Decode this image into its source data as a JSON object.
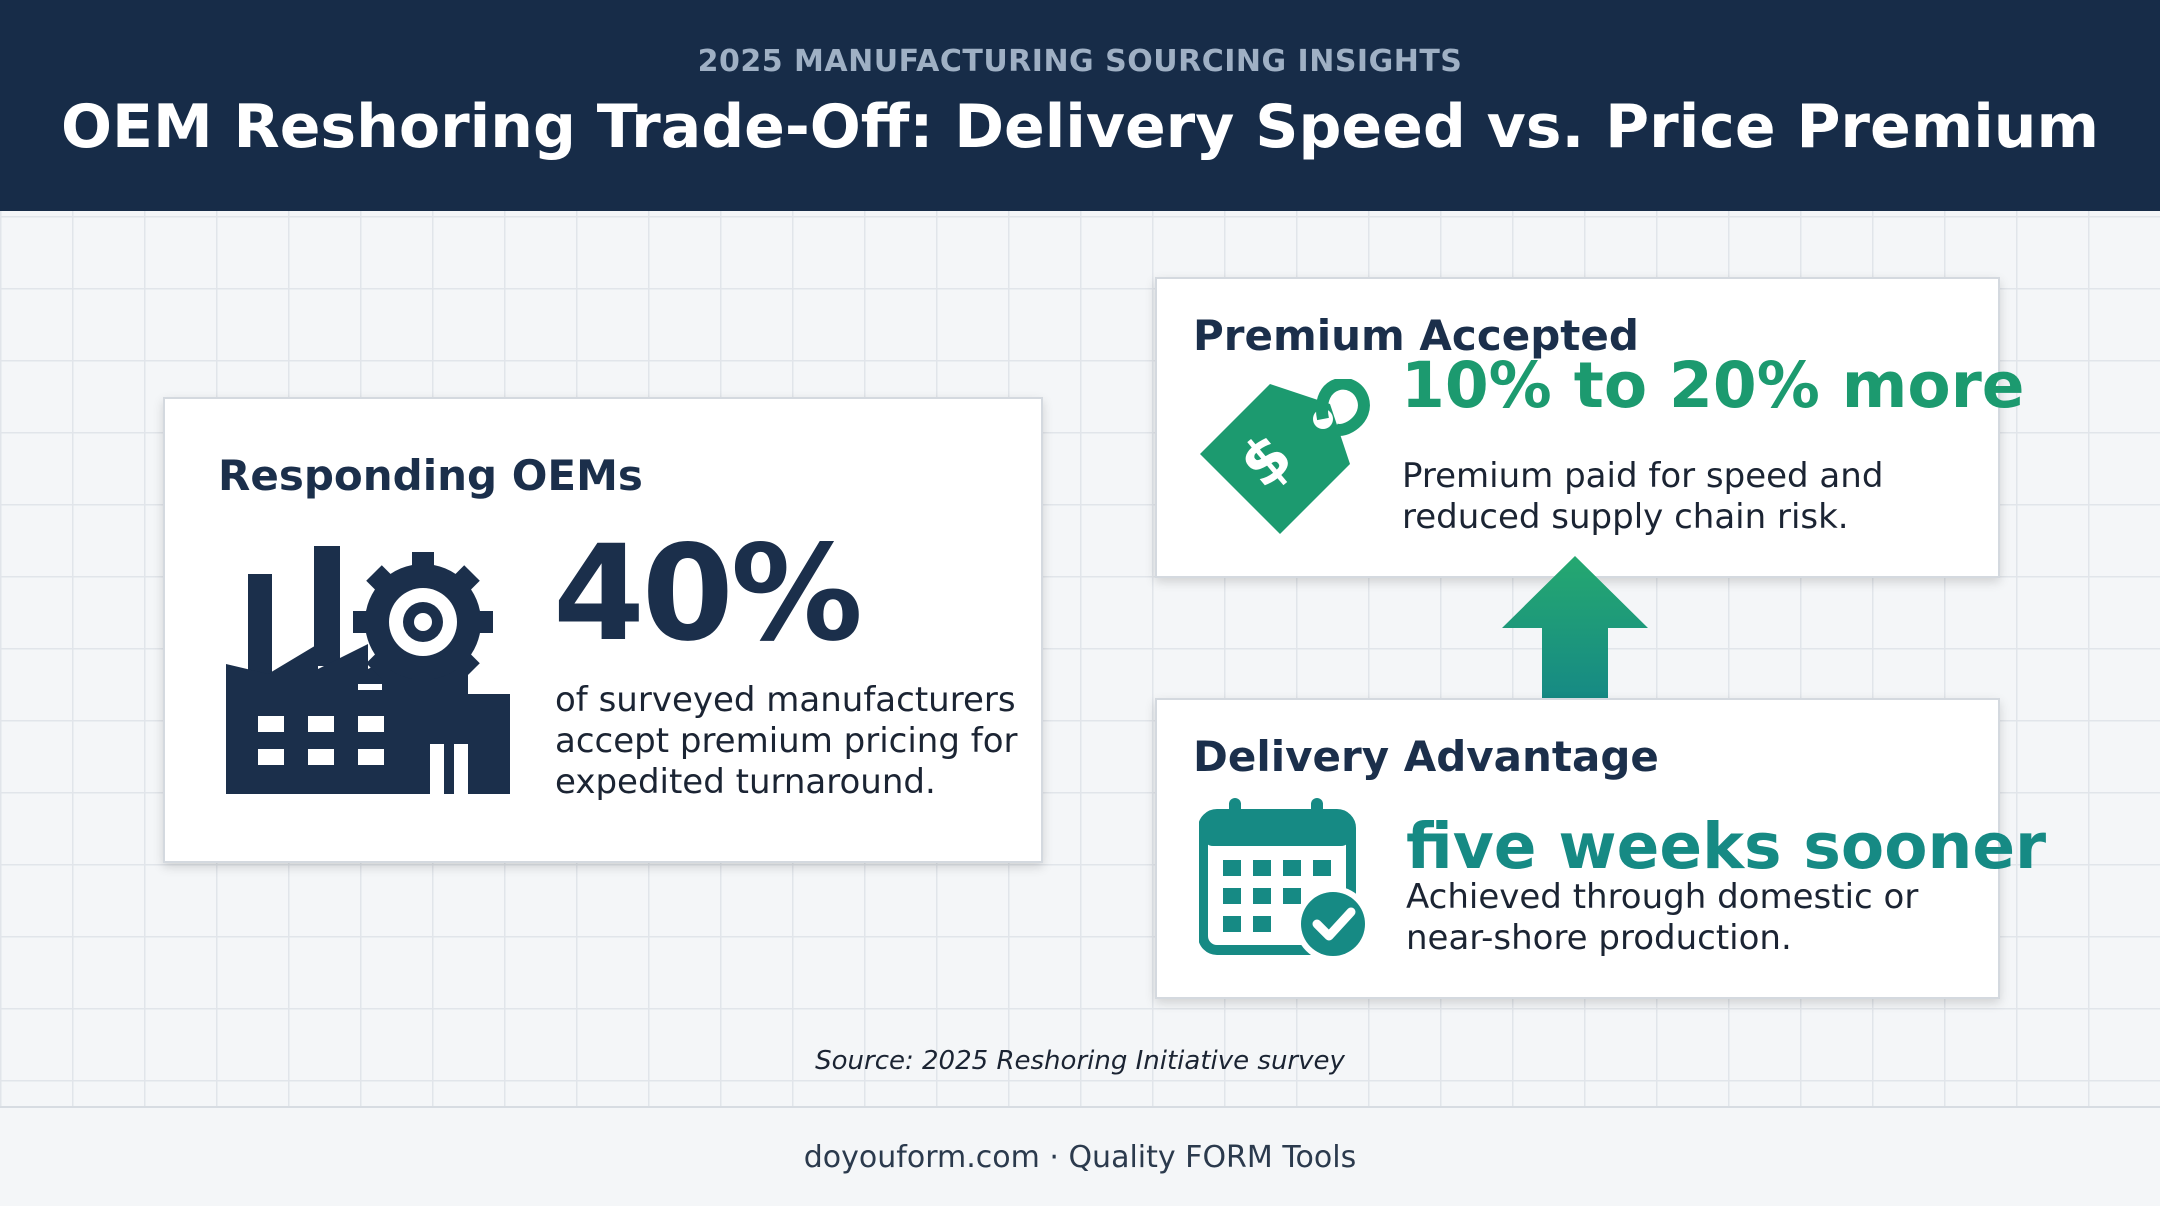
{
  "header": {
    "eyebrow": "2025 MANUFACTURING SOURCING INSIGHTS",
    "title": "OEM Reshoring Trade-Off: Delivery Speed vs. Price Premium"
  },
  "cards": [
    {
      "title": "Responding OEMs",
      "stat": "40%",
      "description": [
        "of surveyed manufacturers",
        "accept premium pricing for",
        "expedited turnaround."
      ]
    },
    {
      "title": "Premium Accepted",
      "stat": "10% to 20% more",
      "description": [
        "Premium paid for speed and",
        "reduced supply chain risk."
      ]
    },
    {
      "title": "Delivery Advantage",
      "stat": "five weeks sooner",
      "description": [
        "Achieved through domestic or",
        "near-shore production."
      ]
    }
  ],
  "source": "Source: 2025 Reshoring Initiative survey",
  "footer": "doyouform.com · Quality FORM Tools"
}
